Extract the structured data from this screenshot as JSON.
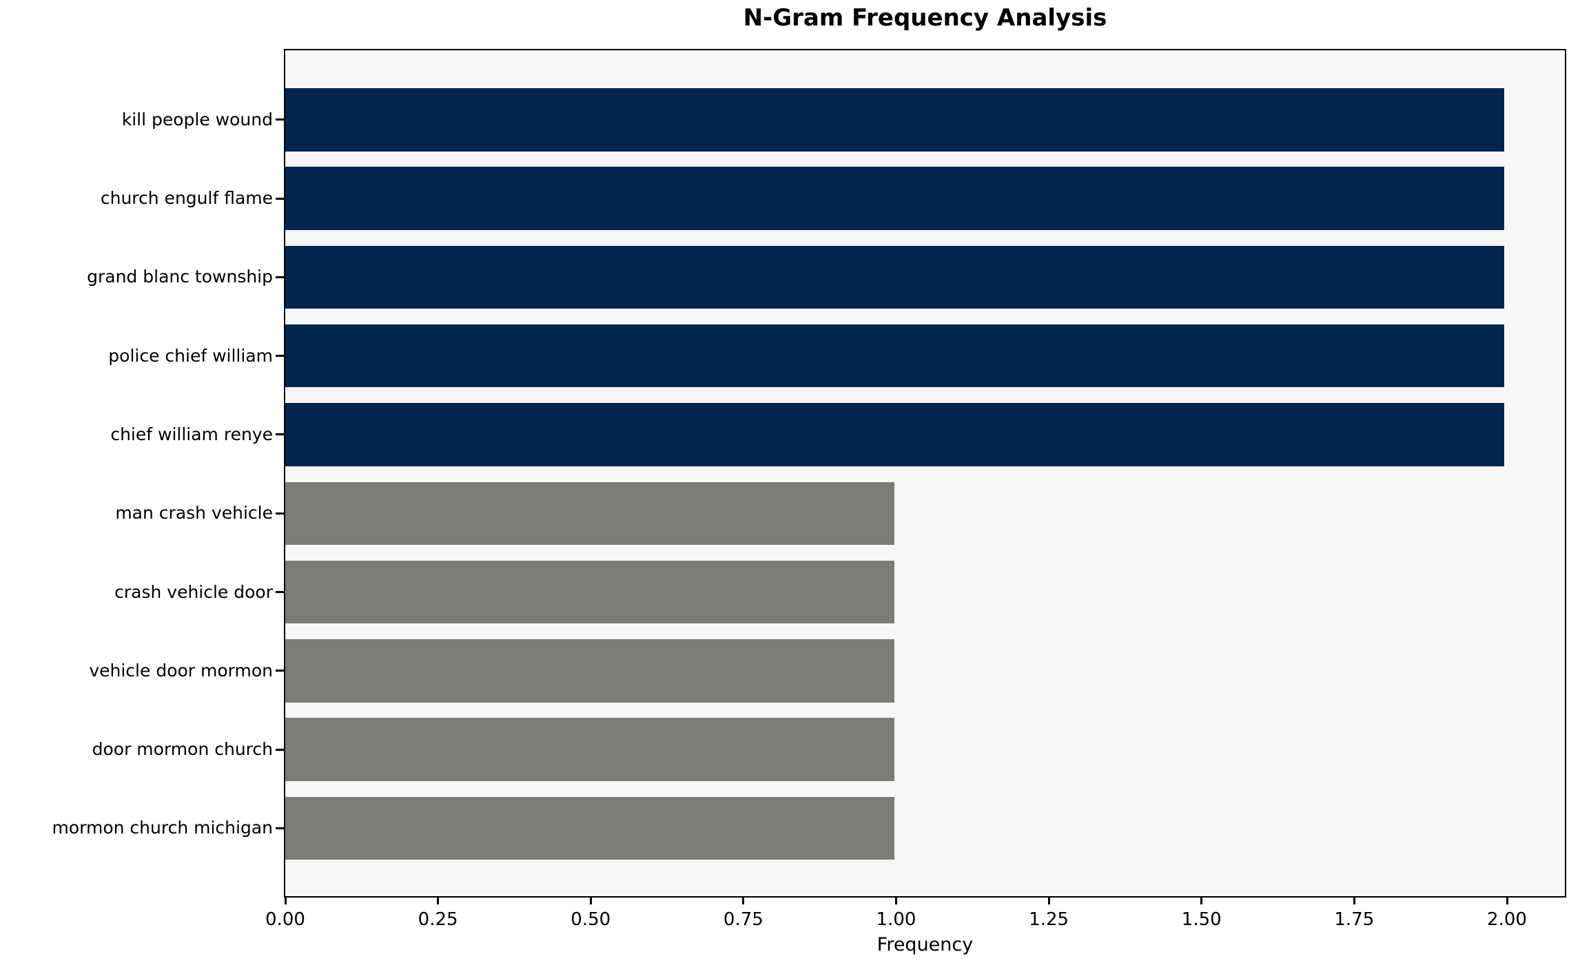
{
  "chart_data": {
    "type": "bar",
    "orientation": "horizontal",
    "title": "N-Gram Frequency Analysis",
    "xlabel": "Frequency",
    "ylabel": "",
    "categories": [
      "kill people wound",
      "church engulf flame",
      "grand blanc township",
      "police chief william",
      "chief william renye",
      "man crash vehicle",
      "crash vehicle door",
      "vehicle door mormon",
      "door mormon church",
      "mormon church michigan"
    ],
    "values": [
      2,
      2,
      2,
      2,
      2,
      1,
      1,
      1,
      1,
      1
    ],
    "bar_colors": [
      "#02254E",
      "#02254E",
      "#02254E",
      "#02254E",
      "#02254E",
      "#7B7B77",
      "#7B7B77",
      "#7B7B77",
      "#7B7B77",
      "#7B7B77"
    ],
    "xlim": [
      0,
      2.1
    ],
    "xticks": [
      "0.00",
      "0.25",
      "0.50",
      "0.75",
      "1.00",
      "1.25",
      "1.50",
      "1.75",
      "2.00"
    ],
    "grid": false,
    "legend": "none",
    "plot_background": "#F7F7F7",
    "figure_background": "#FFFFFF",
    "accent_color_high": "#02254E",
    "accent_color_low": "#7B7B77"
  }
}
